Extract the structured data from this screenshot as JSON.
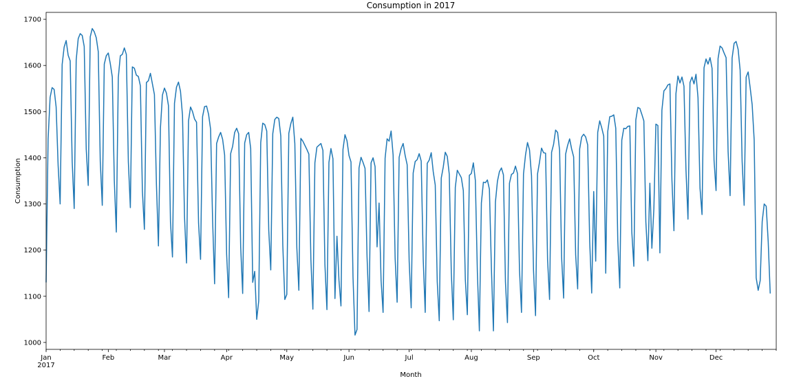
{
  "chart_data": {
    "type": "line",
    "title": "Consumption in 2017",
    "xlabel": "Month",
    "ylabel": "Consumption",
    "x_tick_labels": [
      "Jan",
      "Feb",
      "Mar",
      "Apr",
      "May",
      "Jun",
      "Jul",
      "Aug",
      "Sep",
      "Oct",
      "Nov",
      "Dec"
    ],
    "x_tick_sublabel": "2017",
    "y_ticks": [
      1000,
      1100,
      1200,
      1300,
      1400,
      1500,
      1600,
      1700
    ],
    "xlim": [
      "2017-01-01",
      "2017-12-31"
    ],
    "ylim": [
      985,
      1715
    ],
    "grid": false,
    "series": [
      {
        "color": "#1f77b4",
        "start_date": "2017-01-01",
        "values": [
          1130,
          1441,
          1531,
          1552,
          1548,
          1510,
          1383,
          1300,
          1602,
          1640,
          1654,
          1622,
          1610,
          1392,
          1290,
          1612,
          1658,
          1669,
          1665,
          1641,
          1419,
          1340,
          1662,
          1680,
          1673,
          1660,
          1630,
          1392,
          1297,
          1603,
          1621,
          1627,
          1604,
          1575,
          1351,
          1239,
          1574,
          1621,
          1624,
          1638,
          1624,
          1391,
          1292,
          1597,
          1594,
          1579,
          1576,
          1556,
          1328,
          1245,
          1563,
          1567,
          1583,
          1560,
          1537,
          1342,
          1209,
          1465,
          1536,
          1551,
          1540,
          1513,
          1261,
          1185,
          1518,
          1553,
          1564,
          1544,
          1492,
          1273,
          1172,
          1480,
          1510,
          1500,
          1484,
          1477,
          1259,
          1180,
          1489,
          1511,
          1512,
          1494,
          1462,
          1266,
          1127,
          1431,
          1445,
          1455,
          1440,
          1406,
          1191,
          1097,
          1409,
          1425,
          1455,
          1464,
          1452,
          1207,
          1106,
          1432,
          1450,
          1455,
          1420,
          1130,
          1154,
          1050,
          1090,
          1433,
          1475,
          1472,
          1458,
          1243,
          1157,
          1452,
          1483,
          1488,
          1485,
          1447,
          1211,
          1093,
          1104,
          1453,
          1474,
          1488,
          1431,
          1205,
          1113,
          1442,
          1436,
          1427,
          1418,
          1408,
          1180,
          1072,
          1389,
          1423,
          1427,
          1431,
          1416,
          1169,
          1071,
          1390,
          1420,
          1398,
          1095,
          1230,
          1135,
          1079,
          1418,
          1450,
          1437,
          1405,
          1391,
          1142,
          1016,
          1028,
          1378,
          1401,
          1390,
          1377,
          1186,
          1067,
          1389,
          1400,
          1381,
          1207,
          1302,
          1134,
          1065,
          1399,
          1441,
          1436,
          1458,
          1406,
          1183,
          1087,
          1401,
          1420,
          1431,
          1405,
          1385,
          1176,
          1075,
          1367,
          1392,
          1396,
          1409,
          1393,
          1181,
          1065,
          1388,
          1395,
          1411,
          1370,
          1341,
          1131,
          1047,
          1356,
          1380,
          1412,
          1403,
          1364,
          1152,
          1049,
          1336,
          1373,
          1365,
          1357,
          1329,
          1136,
          1060,
          1362,
          1366,
          1389,
          1351,
          1152,
          1025,
          1302,
          1347,
          1346,
          1352,
          1332,
          1161,
          1025,
          1304,
          1349,
          1370,
          1378,
          1363,
          1131,
          1043,
          1345,
          1364,
          1367,
          1382,
          1366,
          1157,
          1065,
          1365,
          1406,
          1433,
          1417,
          1361,
          1156,
          1058,
          1365,
          1391,
          1421,
          1411,
          1410,
          1179,
          1093,
          1412,
          1429,
          1460,
          1455,
          1416,
          1185,
          1096,
          1408,
          1427,
          1441,
          1419,
          1402,
          1190,
          1116,
          1419,
          1445,
          1451,
          1445,
          1428,
          1219,
          1107,
          1327,
          1176,
          1455,
          1480,
          1465,
          1447,
          1150,
          1457,
          1489,
          1490,
          1493,
          1464,
          1221,
          1118,
          1438,
          1464,
          1463,
          1468,
          1469,
          1239,
          1165,
          1482,
          1509,
          1507,
          1494,
          1480,
          1261,
          1177,
          1345,
          1204,
          1290,
          1473,
          1470,
          1194,
          1503,
          1545,
          1550,
          1558,
          1560,
          1352,
          1242,
          1539,
          1577,
          1562,
          1575,
          1555,
          1374,
          1267,
          1563,
          1575,
          1560,
          1581,
          1530,
          1334,
          1277,
          1595,
          1614,
          1603,
          1617,
          1594,
          1394,
          1329,
          1615,
          1642,
          1638,
          1627,
          1617,
          1414,
          1318,
          1616,
          1648,
          1652,
          1635,
          1590,
          1392,
          1297,
          1575,
          1586,
          1552,
          1515,
          1439,
          1140,
          1113,
          1134,
          1262,
          1300,
          1295,
          1218,
          1106
        ]
      }
    ]
  }
}
